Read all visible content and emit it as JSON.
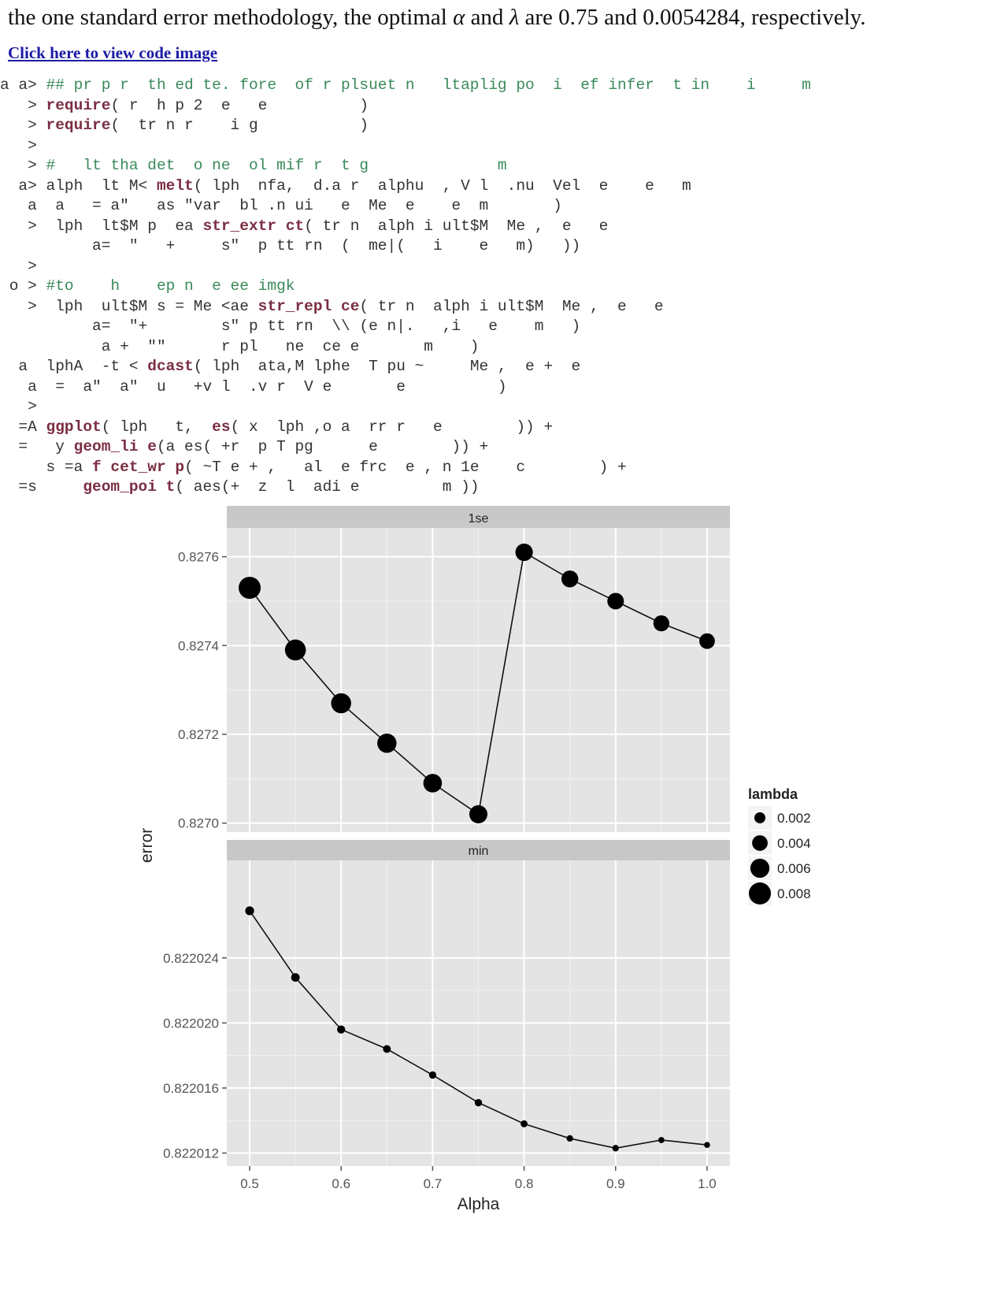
{
  "intro": {
    "part1": "the one standard error methodology, the optimal ",
    "alpha_sym": "α",
    "part2": " and ",
    "lambda_sym": "λ",
    "part3": " are 0.75 and 0.0054284, respectively."
  },
  "code_link": "Click here to view code image",
  "code_lines": [
    {
      "prefix": "a a> ",
      "segments": [
        {
          "t": "## pr p r  th ed te. fore  of r plsuet n   ltaplig po  i  ef infer  t in    i     m",
          "k": "cm"
        }
      ]
    },
    {
      "prefix": "   > ",
      "segments": [
        {
          "t": "require",
          "k": "fn"
        },
        {
          "t": "( r  h p 2  e   e          )",
          "k": ""
        }
      ]
    },
    {
      "prefix": "   > ",
      "segments": [
        {
          "t": "require",
          "k": "fn"
        },
        {
          "t": "(  tr n r    i g           )",
          "k": ""
        }
      ]
    },
    {
      "prefix": "   > ",
      "segments": []
    },
    {
      "prefix": "   > ",
      "segments": [
        {
          "t": "#   lt tha det  o ne  ol mif r  t g              m",
          "k": "cm"
        }
      ]
    },
    {
      "prefix": "  a> ",
      "segments": [
        {
          "t": "alph  lt M< ",
          "k": ""
        },
        {
          "t": "melt",
          "k": "fn"
        },
        {
          "t": "( lph  nfa,  d.a r  alphu  , V l  .nu  Vel  e    e   m",
          "k": ""
        }
      ]
    },
    {
      "prefix": "   a  ",
      "segments": [
        {
          "t": "a   = a\"   as \"var  bl .n ui   e  Me  e    e  m       )",
          "k": ""
        }
      ]
    },
    {
      "prefix": "   >  ",
      "segments": [
        {
          "t": "lph  lt$M p  ea ",
          "k": ""
        },
        {
          "t": "str_extr ct",
          "k": "fn"
        },
        {
          "t": "( tr n  alph i ult$M  Me ,  e   e",
          "k": ""
        }
      ]
    },
    {
      "prefix": "         ",
      "segments": [
        {
          "t": " a=  \"   +     s\"  p tt rn  (  me|(   i    e   m)   ))",
          "k": ""
        }
      ]
    },
    {
      "prefix": "   > ",
      "segments": []
    },
    {
      "prefix": " o > ",
      "segments": [
        {
          "t": "#to    h    ep n  e ee imgk",
          "k": "cm"
        }
      ]
    },
    {
      "prefix": "   >  ",
      "segments": [
        {
          "t": "lph  ult$M s = Me <ae ",
          "k": ""
        },
        {
          "t": "str_repl ce",
          "k": "fn"
        },
        {
          "t": "( tr n  alph i ult$M  Me ,  e   e",
          "k": ""
        }
      ]
    },
    {
      "prefix": "          ",
      "segments": [
        {
          "t": "a=  \"+        s\" p tt rn  \\\\ (e n|.   ,i   e    m   )",
          "k": ""
        }
      ]
    },
    {
      "prefix": "           ",
      "segments": [
        {
          "t": "a +  \"\"      r pl   ne  ce e       m    )",
          "k": ""
        }
      ]
    },
    {
      "prefix": "  a  ",
      "segments": [
        {
          "t": "lphA  -t < ",
          "k": ""
        },
        {
          "t": "dcast",
          "k": "fn"
        },
        {
          "t": "( lph  ata,M lphe  T pu ~     Me ,  e +  e",
          "k": ""
        }
      ]
    },
    {
      "prefix": "   a  ",
      "segments": [
        {
          "t": "=  a\"  a\"  u   +v l  .v r  V e       e          )",
          "k": ""
        }
      ]
    },
    {
      "prefix": "   > ",
      "segments": []
    },
    {
      "prefix": "  =A ",
      "segments": [
        {
          "t": "ggplot",
          "k": "fn"
        },
        {
          "t": "( lph   t,  ",
          "k": ""
        },
        {
          "t": "es",
          "k": "fn"
        },
        {
          "t": "( x  lph ,o a  rr r   e        )) +",
          "k": ""
        }
      ]
    },
    {
      "prefix": "  =   ",
      "segments": [
        {
          "t": "y ",
          "k": ""
        },
        {
          "t": "geom_li e",
          "k": "fn"
        },
        {
          "t": "(a es( +r  p T pg      e        )) +",
          "k": ""
        }
      ]
    },
    {
      "prefix": "     ",
      "segments": [
        {
          "t": "s =a ",
          "k": ""
        },
        {
          "t": "f cet_wr p",
          "k": "fn"
        },
        {
          "t": "( ~T e + ,   al  e frc  e , n 1e    c        ) +",
          "k": ""
        }
      ]
    },
    {
      "prefix": "  =s    ",
      "segments": [
        {
          "t": " ",
          "k": ""
        },
        {
          "t": "geom_poi t",
          "k": "fn"
        },
        {
          "t": "( aes(+  z  l  adi e         m ))",
          "k": ""
        }
      ]
    }
  ],
  "chart_data": {
    "type": "scatter",
    "xlabel": "Alpha",
    "ylabel": "error",
    "x_ticks": [
      "0.5",
      "0.6",
      "0.7",
      "0.8",
      "0.9",
      "1.0"
    ],
    "legend": {
      "title": "lambda",
      "placement": "right",
      "entries": [
        {
          "label": "0.002",
          "value": 0.002
        },
        {
          "label": "0.004",
          "value": 0.004
        },
        {
          "label": "0.006",
          "value": 0.006
        },
        {
          "label": "0.008",
          "value": 0.008
        }
      ]
    },
    "panels": [
      {
        "title": "1se",
        "ylim": [
          0.82698,
          0.827665
        ],
        "y_ticks": [
          0.827,
          0.8272,
          0.8274,
          0.8276
        ],
        "y_tick_labels": [
          "0.8270",
          "0.8272",
          "0.8274",
          "0.8276"
        ],
        "points": [
          {
            "x": 0.5,
            "y": 0.82753,
            "lambda": 0.008
          },
          {
            "x": 0.55,
            "y": 0.82739,
            "lambda": 0.0072
          },
          {
            "x": 0.6,
            "y": 0.82727,
            "lambda": 0.0066
          },
          {
            "x": 0.65,
            "y": 0.82718,
            "lambda": 0.0061
          },
          {
            "x": 0.7,
            "y": 0.82709,
            "lambda": 0.0057
          },
          {
            "x": 0.75,
            "y": 0.82702,
            "lambda": 0.0054
          },
          {
            "x": 0.8,
            "y": 0.82761,
            "lambda": 0.005
          },
          {
            "x": 0.85,
            "y": 0.82755,
            "lambda": 0.0047
          },
          {
            "x": 0.9,
            "y": 0.8275,
            "lambda": 0.0045
          },
          {
            "x": 0.95,
            "y": 0.82745,
            "lambda": 0.0042
          },
          {
            "x": 1.0,
            "y": 0.82741,
            "lambda": 0.004
          }
        ]
      },
      {
        "title": "min",
        "ylim": [
          0.8220112,
          0.82203
        ],
        "y_ticks": [
          0.822012,
          0.822016,
          0.82202,
          0.822024
        ],
        "y_tick_labels": [
          "0.822012",
          "0.822016",
          "0.822020",
          "0.822024"
        ],
        "points": [
          {
            "x": 0.5,
            "y": 0.8220269,
            "lambda": 0.0013
          },
          {
            "x": 0.55,
            "y": 0.8220228,
            "lambda": 0.0012
          },
          {
            "x": 0.6,
            "y": 0.8220196,
            "lambda": 0.0011
          },
          {
            "x": 0.65,
            "y": 0.8220184,
            "lambda": 0.001
          },
          {
            "x": 0.7,
            "y": 0.8220168,
            "lambda": 0.0009
          },
          {
            "x": 0.75,
            "y": 0.8220151,
            "lambda": 0.0009
          },
          {
            "x": 0.8,
            "y": 0.8220138,
            "lambda": 0.0008
          },
          {
            "x": 0.85,
            "y": 0.8220129,
            "lambda": 0.0007
          },
          {
            "x": 0.9,
            "y": 0.8220123,
            "lambda": 0.0007
          },
          {
            "x": 0.95,
            "y": 0.8220128,
            "lambda": 0.0006
          },
          {
            "x": 1.0,
            "y": 0.8220125,
            "lambda": 0.0006
          }
        ]
      }
    ]
  }
}
